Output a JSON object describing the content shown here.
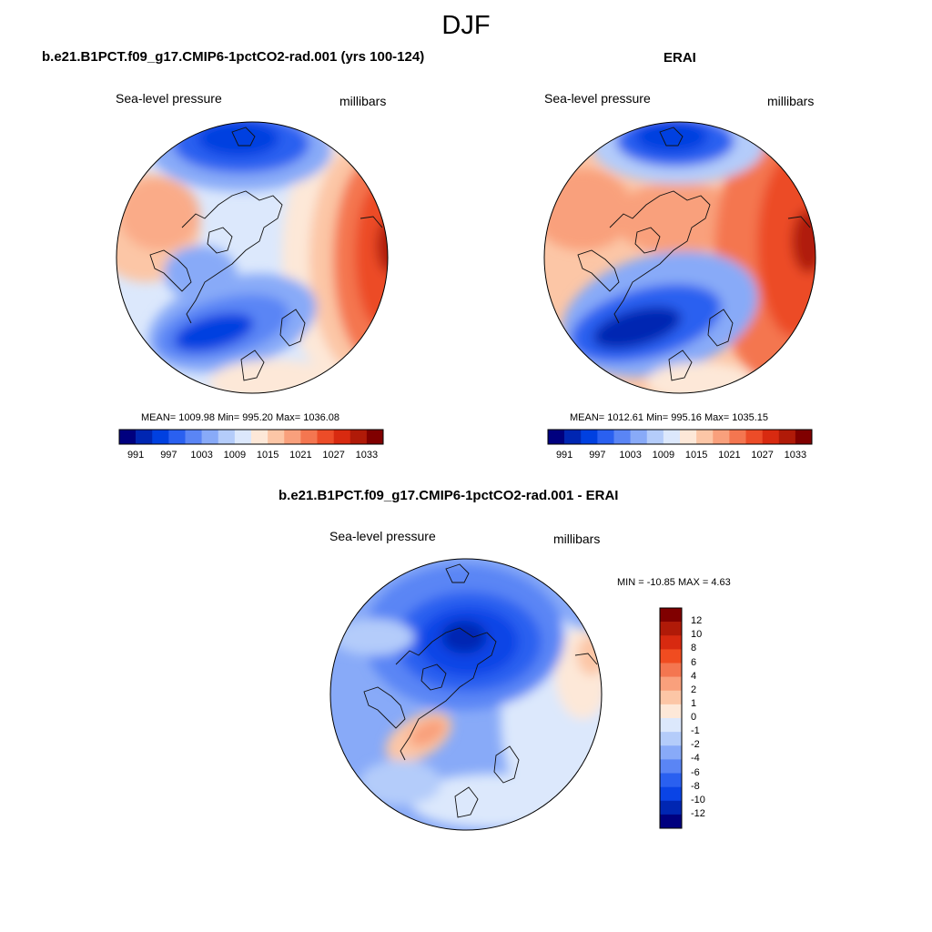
{
  "season": "DJF",
  "panels": [
    {
      "id": "model",
      "title": "b.e21.B1PCT.f09_g17.CMIP6-1pctCO2-rad.001 (yrs 100-124)",
      "left_label": "Sea-level pressure",
      "right_label": "millibars",
      "stats": "MEAN= 1009.98  Min= 995.20  Max= 1036.08",
      "mean": 1009.98,
      "min": 995.2,
      "max": 1036.08
    },
    {
      "id": "obs",
      "title": "ERAI",
      "left_label": "Sea-level pressure",
      "right_label": "millibars",
      "stats": "MEAN= 1012.61  Min= 995.16  Max= 1035.15",
      "mean": 1012.61,
      "min": 995.16,
      "max": 1035.15
    },
    {
      "id": "diff",
      "title": "b.e21.B1PCT.f09_g17.CMIP6-1pctCO2-rad.001 - ERAI",
      "left_label": "Sea-level pressure",
      "right_label": "millibars",
      "stats": "MIN = -10.85 MAX =   4.63",
      "min": -10.85,
      "max": 4.63
    }
  ],
  "colorbar_abs": {
    "colors": [
      "#00007f",
      "#0026b2",
      "#0040e0",
      "#2a60f0",
      "#5a85f5",
      "#88aaf8",
      "#b4ccfa",
      "#dce8fc",
      "#fde8d8",
      "#fcc6a6",
      "#f9a07c",
      "#f47650",
      "#ec4c28",
      "#d82a10",
      "#b01a08",
      "#800000"
    ],
    "tick_labels": [
      "991",
      "997",
      "1003",
      "1009",
      "1015",
      "1021",
      "1027",
      "1033"
    ]
  },
  "colorbar_diff": {
    "colors": [
      "#800000",
      "#b01a08",
      "#d82a10",
      "#f04c20",
      "#f47650",
      "#f9a07c",
      "#fcc6a6",
      "#fde8d8",
      "#dce8fc",
      "#b4ccfa",
      "#88aaf8",
      "#5a85f5",
      "#2a60f0",
      "#0a44e6",
      "#0026b2",
      "#00007f"
    ],
    "tick_labels": [
      "12",
      "10",
      "8",
      "6",
      "4",
      "2",
      "1",
      "0",
      "-1",
      "-2",
      "-4",
      "-6",
      "-8",
      "-10",
      "-12"
    ]
  }
}
